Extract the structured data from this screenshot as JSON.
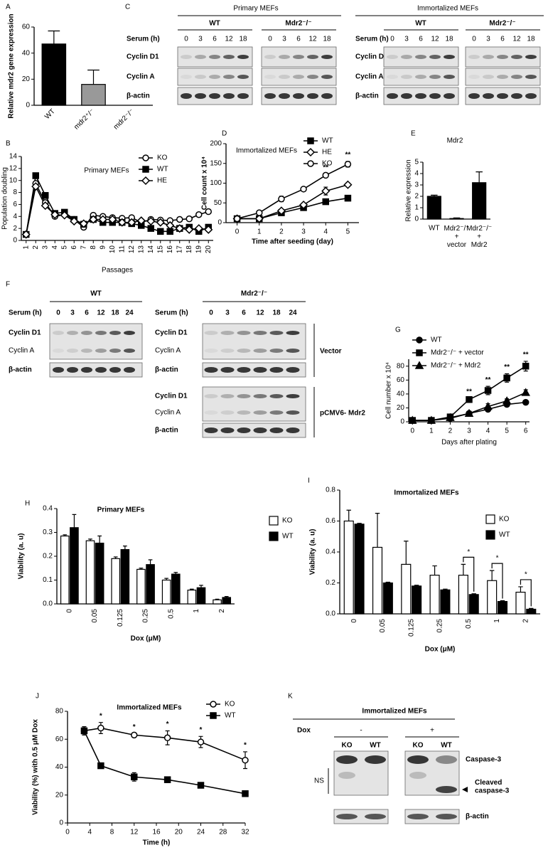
{
  "chart_data": [
    {
      "label": "A",
      "type": "bar",
      "ylabel": "Relative mdr2 gene expression",
      "categories": [
        "WT",
        "mdr2⁺/⁻",
        "mdr2⁻/⁻"
      ],
      "values": [
        47,
        16,
        0
      ],
      "errors": [
        10,
        11,
        null
      ],
      "colors": [
        "#000000",
        "#999999",
        "#999999"
      ],
      "ylim": [
        0,
        60
      ],
      "yticks": [
        0,
        20,
        40,
        60
      ]
    },
    {
      "label": "B",
      "type": "line",
      "title": "Primary MEFs",
      "ylabel": "Population doubling",
      "xlabel": "Passages",
      "x": [
        1,
        2,
        3,
        4,
        5,
        6,
        7,
        8,
        9,
        10,
        11,
        12,
        13,
        14,
        15,
        16,
        17,
        18,
        19,
        20
      ],
      "xlim": [
        0.5,
        20.5
      ],
      "xticks": [
        1,
        2,
        3,
        4,
        5,
        6,
        7,
        8,
        9,
        10,
        11,
        12,
        13,
        14,
        15,
        16,
        17,
        18,
        19,
        20
      ],
      "ylim": [
        0,
        14
      ],
      "yticks": [
        0,
        2,
        4,
        6,
        8,
        10,
        12,
        14
      ],
      "legend": "upper-right",
      "series": [
        {
          "name": "KO",
          "color": "#000000",
          "marker": "circle-open",
          "values": [
            1,
            9.5,
            6.3,
            4,
            4.3,
            3.5,
            2.2,
            4.2,
            4,
            3.8,
            3.7,
            3.8,
            3,
            3.5,
            3.4,
            3.3,
            3.5,
            3.6,
            4.3,
            4.8
          ]
        },
        {
          "name": "WT",
          "color": "#000000",
          "marker": "square",
          "values": [
            1,
            10.8,
            7.5,
            4.5,
            4.7,
            3.5,
            2.7,
            3.5,
            3,
            3,
            3,
            2.8,
            2.5,
            2,
            1.5,
            1.5,
            2,
            2.2,
            1.5,
            2.2
          ]
        },
        {
          "name": "HE",
          "color": "#000000",
          "marker": "diamond-open",
          "values": [
            1,
            9,
            5.8,
            4.3,
            4.2,
            3.2,
            2.8,
            3.5,
            3.5,
            3.5,
            3,
            3,
            3.3,
            3.2,
            3,
            2.5,
            2,
            1.8,
            2,
            1.8
          ]
        }
      ]
    },
    {
      "label": "D",
      "type": "line",
      "title": "Immortalized MEFs",
      "ylabel": "Cell count x 10⁴",
      "xlabel": "Time after seeding (day)",
      "x": [
        0,
        1,
        2,
        3,
        4,
        5
      ],
      "xlim": [
        -0.5,
        5.5
      ],
      "xticks": [
        0,
        1,
        2,
        3,
        4,
        5
      ],
      "ylim": [
        0,
        200
      ],
      "yticks": [
        0,
        50,
        100,
        150,
        200
      ],
      "legend": "upper-right",
      "series": [
        {
          "name": "WT",
          "color": "#000000",
          "marker": "square",
          "values": [
            10,
            10,
            25,
            38,
            53,
            62
          ],
          "errors": [
            0,
            2,
            5,
            5,
            3,
            7
          ]
        },
        {
          "name": "HE",
          "color": "#000000",
          "marker": "diamond-open",
          "values": [
            10,
            10,
            30,
            45,
            80,
            96
          ],
          "errors": [
            0,
            2,
            3,
            4,
            10,
            5
          ]
        },
        {
          "name": "KO",
          "color": "#000000",
          "marker": "circle-open",
          "values": [
            10,
            25,
            60,
            85,
            120,
            148
          ],
          "errors": [
            0,
            2,
            7,
            3,
            3,
            7
          ]
        }
      ],
      "annotations": [
        {
          "text": "**",
          "x": 4
        },
        {
          "text": "**",
          "x": 5
        }
      ]
    },
    {
      "label": "E",
      "type": "bar",
      "title": "Mdr2",
      "ylabel": "Relative expression",
      "categories": [
        "WT",
        "Mdr2⁻/⁻\n+\nvector",
        "Mdr2⁻/⁻\n+\nMdr2"
      ],
      "values": [
        2,
        0.05,
        3.2
      ],
      "errors": [
        0.1,
        0.05,
        0.95
      ],
      "colors": [
        "#000000",
        "#000000",
        "#000000"
      ],
      "ylim": [
        0,
        5
      ],
      "yticks": [
        0,
        1,
        2,
        3,
        4,
        5
      ]
    },
    {
      "label": "G",
      "type": "line",
      "ylabel": "Cell number x 10⁴",
      "xlabel": "Days after plating",
      "x": [
        0,
        1,
        2,
        3,
        4,
        5,
        6
      ],
      "xlim": [
        -0.2,
        6.2
      ],
      "xticks": [
        0,
        1,
        2,
        3,
        4,
        5,
        6
      ],
      "ylim": [
        0,
        90
      ],
      "yticks": [
        0,
        20,
        40,
        60,
        80
      ],
      "legend": "upper-left",
      "series": [
        {
          "name": "WT",
          "color": "#000000",
          "marker": "circle",
          "values": [
            2,
            2,
            5,
            12,
            18,
            25,
            28
          ],
          "errors": [
            0,
            0,
            1,
            1,
            2,
            2,
            3
          ]
        },
        {
          "name": "Mdr2⁻/⁻ + vector",
          "color": "#000000",
          "marker": "square",
          "values": [
            2,
            2,
            7,
            32,
            45,
            63,
            80
          ],
          "errors": [
            0,
            0,
            1,
            2,
            6,
            6,
            7
          ]
        },
        {
          "name": "Mdr2⁻/⁻ + Mdr2",
          "color": "#000000",
          "marker": "triangle",
          "values": [
            2,
            2,
            6,
            12,
            22,
            30,
            42
          ],
          "errors": [
            0,
            0,
            1,
            1,
            4,
            3,
            4
          ]
        }
      ],
      "annotations": [
        {
          "text": "**",
          "x": 3
        },
        {
          "text": "**",
          "x": 4
        },
        {
          "text": "**",
          "x": 5
        },
        {
          "text": "**",
          "x": 6
        }
      ]
    },
    {
      "label": "H",
      "type": "bar",
      "title": "Primary MEFs",
      "ylabel": "Viability (a. u)",
      "xlabel": "Dox (μM)",
      "categories": [
        "0",
        "0.05",
        "0.125",
        "0.25",
        "0.5",
        "1",
        "2"
      ],
      "ylim": [
        0,
        0.4
      ],
      "yticks": [
        {
          "value": 0,
          "label": "0.0"
        },
        0.1,
        0.2,
        0.3,
        0.4
      ],
      "legend": "upper-right",
      "series": [
        {
          "name": "KO",
          "color": "#ffffff",
          "values": [
            0.285,
            0.265,
            0.19,
            0.145,
            0.1,
            0.058,
            0.017
          ],
          "errors": [
            0.005,
            0.007,
            0.007,
            0.005,
            0.007,
            0.004,
            0.003
          ]
        },
        {
          "name": "WT",
          "color": "#000000",
          "values": [
            0.32,
            0.255,
            0.228,
            0.165,
            0.125,
            0.068,
            0.027
          ],
          "errors": [
            0.055,
            0.03,
            0.015,
            0.02,
            0.007,
            0.01,
            0.004
          ]
        }
      ]
    },
    {
      "label": "I",
      "type": "bar",
      "title": "Immortalized MEFs",
      "ylabel": "Viability (a. u)",
      "xlabel": "Dox (μM)",
      "categories": [
        "0",
        "0.05",
        "0.125",
        "0.25",
        "0.5",
        "1",
        "2"
      ],
      "ylim": [
        0,
        0.8
      ],
      "yticks": [
        {
          "value": 0,
          "label": "0.0"
        },
        0.2,
        0.4,
        0.6,
        0.8
      ],
      "legend": "upper-right",
      "series": [
        {
          "name": "KO",
          "color": "#ffffff",
          "values": [
            0.6,
            0.43,
            0.32,
            0.25,
            0.25,
            0.215,
            0.14
          ],
          "errors": [
            0.07,
            0.22,
            0.15,
            0.06,
            0.07,
            0.065,
            0.035
          ]
        },
        {
          "name": "WT",
          "color": "#000000",
          "values": [
            0.58,
            0.2,
            0.18,
            0.155,
            0.125,
            0.08,
            0.03
          ],
          "errors": [
            0.005,
            0.005,
            0.005,
            0.005,
            0.005,
            0.005,
            0.005
          ]
        }
      ],
      "annotations": [
        {
          "text": "*",
          "x": "0.5"
        },
        {
          "text": "*",
          "x": "1"
        },
        {
          "text": "*",
          "x": "2"
        }
      ]
    },
    {
      "label": "J",
      "type": "line",
      "title": "Immortalized MEFs",
      "ylabel": "Viability (%) with 0.5 μM Dox",
      "xlabel": "Time (h)",
      "x": [
        3,
        6,
        12,
        18,
        24,
        32
      ],
      "xlim": [
        0,
        32
      ],
      "xticks": [
        0,
        4,
        8,
        12,
        16,
        20,
        24,
        28,
        32
      ],
      "ylim": [
        0,
        80
      ],
      "yticks": [
        0,
        20,
        40,
        60,
        80
      ],
      "legend": "upper-right",
      "series": [
        {
          "name": "KO",
          "color": "#000000",
          "marker": "circle-open",
          "values": [
            66,
            68,
            63,
            61,
            58,
            45
          ],
          "errors": [
            3,
            4,
            1,
            5,
            4,
            6
          ]
        },
        {
          "name": "WT",
          "color": "#000000",
          "marker": "square",
          "values": [
            66,
            41,
            33,
            31,
            27,
            21
          ],
          "errors": [
            3,
            1,
            3,
            2,
            2,
            1
          ]
        }
      ],
      "annotations": [
        {
          "text": "*",
          "x": 6
        },
        {
          "text": "*",
          "x": 12
        },
        {
          "text": "*",
          "x": 18
        },
        {
          "text": "*",
          "x": 24
        },
        {
          "text": "*",
          "x": 32
        }
      ]
    }
  ],
  "blots": [
    {
      "label": "C",
      "groups": [
        {
          "title": "Primary MEFs",
          "serum": "Serum (h)",
          "rows": [
            "Cyclin D1",
            "Cyclin A",
            "β-actin"
          ],
          "blocks": [
            {
              "name": "WT",
              "lanes": [
                0,
                3,
                6,
                12,
                18
              ]
            },
            {
              "name": "Mdr2⁻/⁻",
              "lanes": [
                0,
                3,
                6,
                12,
                18
              ]
            }
          ]
        },
        {
          "title": "Immortalized MEFs",
          "serum": "Serum (h)",
          "rows": [
            "Cyclin D1",
            "Cyclin A",
            "β-actin"
          ],
          "blocks": [
            {
              "name": "WT",
              "lanes": [
                0,
                3,
                6,
                12,
                18
              ]
            },
            {
              "name": "Mdr2⁻/⁻",
              "lanes": [
                0,
                3,
                6,
                12,
                18
              ]
            }
          ]
        }
      ]
    },
    {
      "label": "F",
      "groups": [
        {
          "title": "WT",
          "serum": "Serum (h)",
          "lanes": [
            0,
            3,
            6,
            12,
            18,
            24
          ],
          "sections": [
            {
              "rows": [
                "Cyclin D1",
                "Cyclin A",
                "β-actin"
              ]
            }
          ]
        },
        {
          "title": "Mdr2⁻/⁻",
          "serum": "Serum (h)",
          "lanes": [
            0,
            3,
            6,
            12,
            18,
            24
          ],
          "sections": [
            {
              "name": "Vector",
              "rows": [
                "Cyclin D1",
                "Cyclin A",
                "β-actin"
              ]
            },
            {
              "name": "pCMV6- Mdr2",
              "rows": [
                "Cyclin D1",
                "Cyclin A",
                "β-actin"
              ]
            }
          ]
        }
      ]
    },
    {
      "label": "K",
      "title": "Immortalized MEFs",
      "treatment": "Dox",
      "conditions": [
        {
          "name": "-",
          "lanes": [
            "KO",
            "WT"
          ]
        },
        {
          "name": "+",
          "lanes": [
            "KO",
            "WT"
          ]
        }
      ],
      "bands": [
        "Caspase-3",
        "Cleaved\ncaspase-3",
        "β-actin"
      ],
      "ns": "NS"
    }
  ]
}
